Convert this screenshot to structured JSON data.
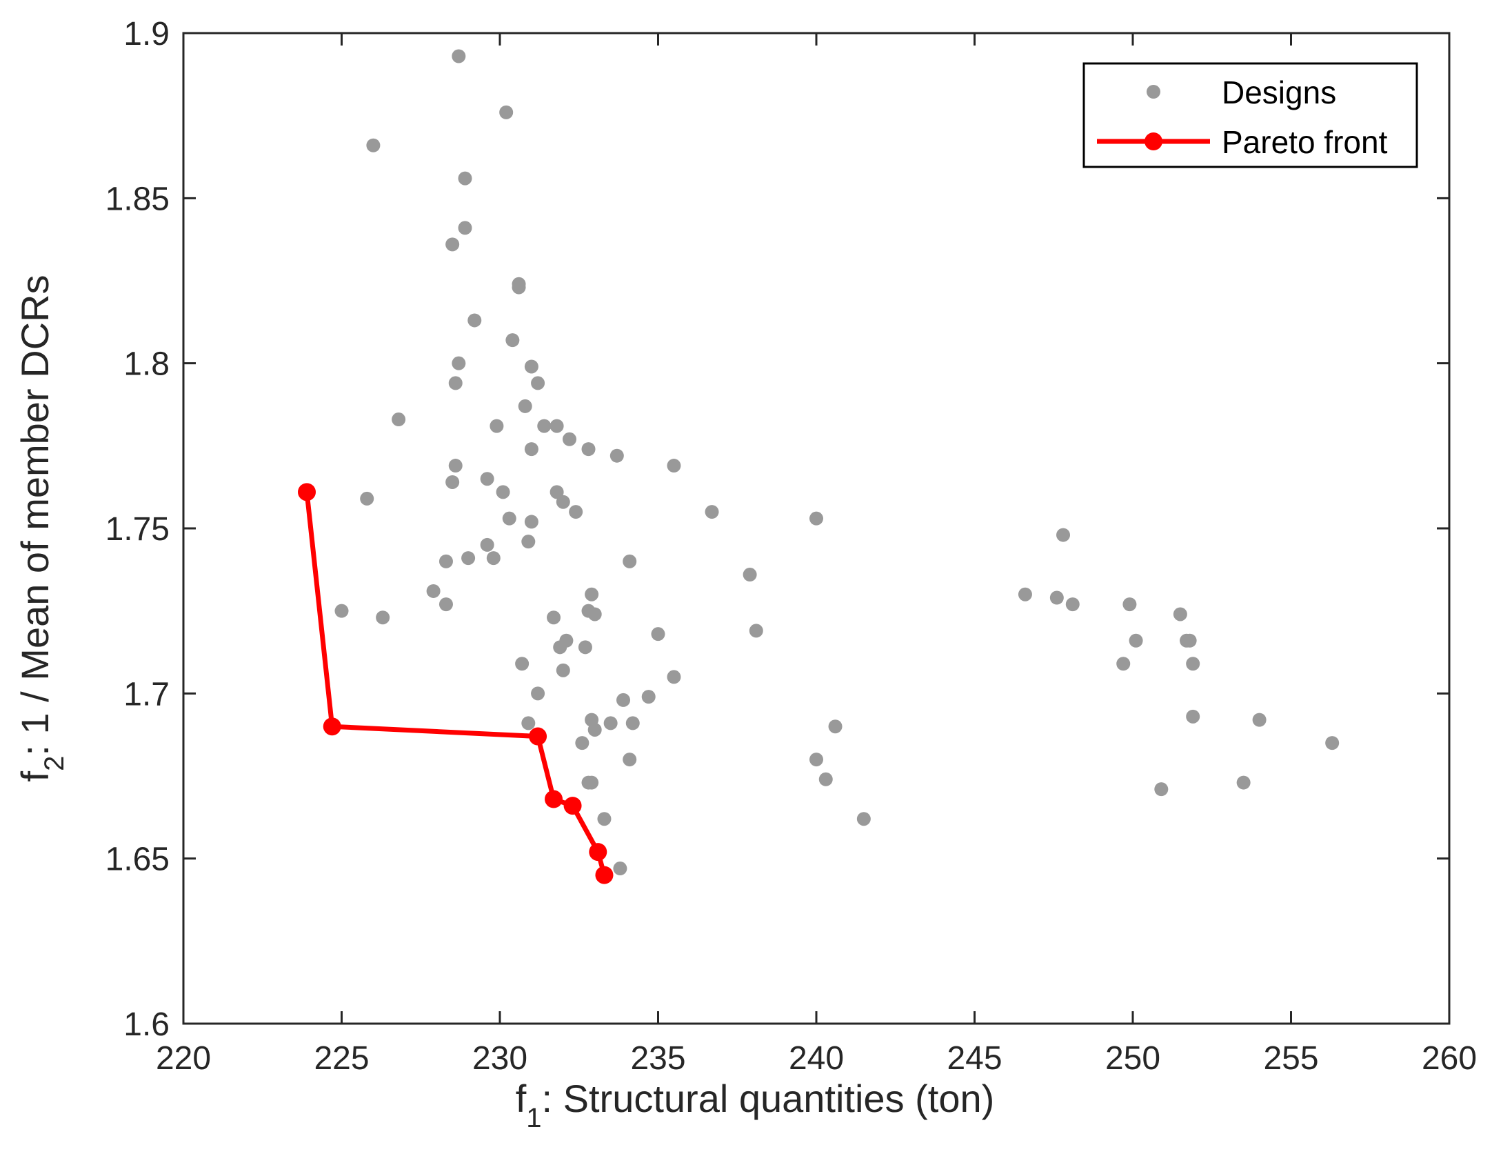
{
  "chart_data": {
    "type": "scatter",
    "title": "",
    "xlabel": {
      "prefix": "f",
      "sub": "1",
      "text": ": Structural quantities (ton)"
    },
    "ylabel": {
      "prefix": "f",
      "sub": "2",
      "text": ": 1 / Mean of member DCRs"
    },
    "xlim": [
      220,
      260
    ],
    "ylim": [
      1.6,
      1.9
    ],
    "xticks": [
      "220",
      "225",
      "230",
      "235",
      "240",
      "245",
      "250",
      "255",
      "260"
    ],
    "yticks": [
      "1.6",
      "1.65",
      "1.7",
      "1.75",
      "1.8",
      "1.85",
      "1.9"
    ],
    "grid": false,
    "legend_position": "top-right",
    "legend": {
      "designs": "Designs",
      "pareto": "Pareto front"
    },
    "colors": {
      "designs": "#999999",
      "pareto": "#ff0000",
      "axes": "#262626"
    },
    "series": [
      {
        "name": "Designs",
        "style": "markers",
        "points": [
          [
            228.7,
            1.893
          ],
          [
            230.2,
            1.876
          ],
          [
            226.0,
            1.866
          ],
          [
            228.9,
            1.856
          ],
          [
            228.9,
            1.841
          ],
          [
            228.5,
            1.836
          ],
          [
            230.6,
            1.824
          ],
          [
            230.6,
            1.823
          ],
          [
            229.2,
            1.813
          ],
          [
            230.4,
            1.807
          ],
          [
            228.7,
            1.8
          ],
          [
            231.0,
            1.799
          ],
          [
            228.6,
            1.794
          ],
          [
            231.2,
            1.794
          ],
          [
            230.8,
            1.787
          ],
          [
            226.8,
            1.783
          ],
          [
            229.9,
            1.781
          ],
          [
            231.4,
            1.781
          ],
          [
            231.8,
            1.781
          ],
          [
            232.2,
            1.777
          ],
          [
            231.0,
            1.774
          ],
          [
            232.8,
            1.774
          ],
          [
            233.7,
            1.772
          ],
          [
            228.6,
            1.769
          ],
          [
            235.5,
            1.769
          ],
          [
            229.6,
            1.765
          ],
          [
            228.5,
            1.764
          ],
          [
            230.1,
            1.761
          ],
          [
            231.8,
            1.761
          ],
          [
            225.8,
            1.759
          ],
          [
            232.0,
            1.758
          ],
          [
            232.4,
            1.755
          ],
          [
            236.7,
            1.755
          ],
          [
            230.3,
            1.753
          ],
          [
            240.0,
            1.753
          ],
          [
            231.0,
            1.752
          ],
          [
            247.8,
            1.748
          ],
          [
            230.9,
            1.746
          ],
          [
            229.6,
            1.745
          ],
          [
            229.0,
            1.741
          ],
          [
            229.8,
            1.741
          ],
          [
            228.3,
            1.74
          ],
          [
            234.1,
            1.74
          ],
          [
            237.9,
            1.736
          ],
          [
            227.9,
            1.731
          ],
          [
            232.9,
            1.73
          ],
          [
            246.6,
            1.73
          ],
          [
            247.6,
            1.729
          ],
          [
            228.3,
            1.727
          ],
          [
            248.1,
            1.727
          ],
          [
            249.9,
            1.727
          ],
          [
            232.8,
            1.725
          ],
          [
            225.0,
            1.725
          ],
          [
            233.0,
            1.724
          ],
          [
            251.5,
            1.724
          ],
          [
            226.3,
            1.723
          ],
          [
            231.7,
            1.723
          ],
          [
            238.1,
            1.719
          ],
          [
            235.0,
            1.718
          ],
          [
            232.1,
            1.716
          ],
          [
            250.1,
            1.716
          ],
          [
            251.7,
            1.716
          ],
          [
            251.8,
            1.716
          ],
          [
            232.7,
            1.714
          ],
          [
            231.9,
            1.714
          ],
          [
            230.7,
            1.709
          ],
          [
            249.7,
            1.709
          ],
          [
            251.9,
            1.709
          ],
          [
            232.0,
            1.707
          ],
          [
            235.5,
            1.705
          ],
          [
            231.2,
            1.7
          ],
          [
            234.7,
            1.699
          ],
          [
            233.9,
            1.698
          ],
          [
            230.9,
            1.691
          ],
          [
            232.9,
            1.692
          ],
          [
            233.5,
            1.691
          ],
          [
            234.2,
            1.691
          ],
          [
            251.9,
            1.693
          ],
          [
            254.0,
            1.692
          ],
          [
            233.0,
            1.689
          ],
          [
            240.6,
            1.69
          ],
          [
            232.6,
            1.685
          ],
          [
            256.3,
            1.685
          ],
          [
            234.1,
            1.68
          ],
          [
            240.0,
            1.68
          ],
          [
            240.3,
            1.674
          ],
          [
            232.9,
            1.673
          ],
          [
            232.8,
            1.673
          ],
          [
            253.5,
            1.673
          ],
          [
            250.9,
            1.671
          ],
          [
            233.3,
            1.662
          ],
          [
            241.5,
            1.662
          ],
          [
            233.8,
            1.647
          ]
        ]
      },
      {
        "name": "Pareto front",
        "style": "line-markers",
        "points": [
          [
            223.9,
            1.761
          ],
          [
            224.7,
            1.69
          ],
          [
            231.2,
            1.687
          ],
          [
            231.7,
            1.668
          ],
          [
            232.3,
            1.666
          ],
          [
            233.1,
            1.652
          ],
          [
            233.3,
            1.645
          ]
        ]
      }
    ]
  }
}
